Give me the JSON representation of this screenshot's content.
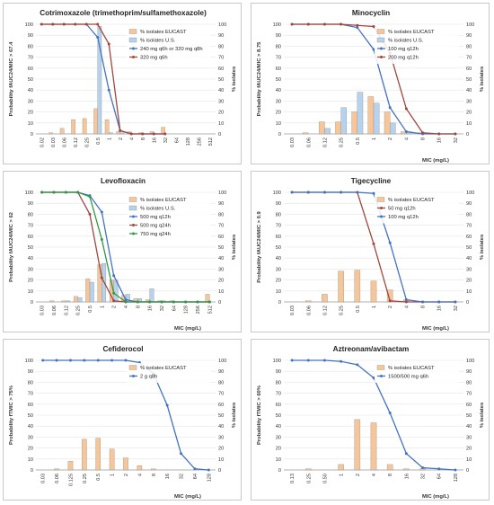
{
  "chart_data": [
    {
      "type": "bar",
      "title": "Cotrimoxazole (trimethoprim/sulfamethoxazole)",
      "ylabel": "Probability fAUC24/MIC > 67.4",
      "y2label": "% isolates",
      "xlabel": "",
      "ylim": [
        0,
        100
      ],
      "y2lim": [
        0,
        100
      ],
      "yticks": [
        0,
        10,
        20,
        30,
        40,
        50,
        60,
        70,
        80,
        90,
        100
      ],
      "categories": [
        "0.02",
        "0.03",
        "0.06",
        "0.12",
        "0.25",
        "0.5",
        "1",
        "2",
        "4",
        "8",
        "16",
        "32",
        "64",
        "128",
        "256",
        "512"
      ],
      "bar_series": [
        {
          "name": "% isolates EUCAST",
          "color": "#f7c698",
          "values": [
            0,
            1,
            5,
            13,
            14,
            23,
            13,
            2,
            2,
            1,
            2,
            6,
            0,
            0,
            0,
            0
          ]
        },
        {
          "name": "% isolates U.S.",
          "color": "#b7d2ec",
          "values": [
            0,
            0,
            0,
            0,
            0,
            98,
            1,
            1,
            0,
            0,
            0,
            0,
            0,
            0,
            0,
            0
          ]
        }
      ],
      "line_series": [
        {
          "name": "240 mg q6h or 320 mg q8h",
          "color": "#4472c4",
          "values": [
            100,
            100,
            100,
            100,
            100,
            88,
            40,
            3,
            0,
            0,
            0,
            0,
            null,
            null,
            null,
            null
          ]
        },
        {
          "name": "320 mg q6h",
          "color": "#a0473d",
          "values": [
            100,
            100,
            100,
            100,
            100,
            100,
            82,
            3,
            0,
            0,
            0,
            0,
            null,
            null,
            null,
            null
          ]
        }
      ]
    },
    {
      "type": "bar",
      "title": "Minocyclin",
      "ylabel": "Probability fAUC24/MIC > 8.75",
      "y2label": "% isolates",
      "xlabel": "MIC (mg/L)",
      "ylim": [
        0,
        100
      ],
      "y2lim": [
        0,
        100
      ],
      "yticks": [
        0,
        10,
        20,
        30,
        40,
        50,
        60,
        70,
        80,
        90,
        100
      ],
      "categories": [
        "0.03",
        "0.06",
        "0.12",
        "0.25",
        "0.5",
        "1",
        "2",
        "4",
        "8",
        "16",
        "32"
      ],
      "bar_series": [
        {
          "name": "% isolates EUCAST",
          "color": "#f7c698",
          "values": [
            0,
            1,
            11,
            11,
            20,
            34,
            20,
            2,
            1,
            0,
            0
          ]
        },
        {
          "name": "% isolates U.S.",
          "color": "#b7d2ec",
          "values": [
            0,
            0,
            5,
            24,
            38,
            28,
            10,
            2,
            1,
            0,
            0
          ]
        }
      ],
      "line_series": [
        {
          "name": "100 mg q12h",
          "color": "#4472c4",
          "values": [
            100,
            100,
            100,
            100,
            97,
            77,
            24,
            2,
            0,
            0,
            0
          ]
        },
        {
          "name": "200 mg q12h",
          "color": "#a0473d",
          "values": [
            100,
            100,
            100,
            100,
            99,
            98,
            74,
            23,
            1,
            0,
            0
          ]
        }
      ]
    },
    {
      "type": "bar",
      "title": "Levofloxacin",
      "ylabel": "Probability fAUC24/MIC > 62",
      "y2label": "% isolates",
      "xlabel": "MIC (mg/L)",
      "ylim": [
        0,
        100
      ],
      "y2lim": [
        0,
        100
      ],
      "yticks": [
        0,
        10,
        20,
        30,
        40,
        50,
        60,
        70,
        80,
        90,
        100
      ],
      "categories": [
        "0.03",
        "0.06",
        "0.12",
        "0.25",
        "0.5",
        "1",
        "2",
        "4",
        "8",
        "16",
        "32",
        "64",
        "128",
        "256",
        "512"
      ],
      "bar_series": [
        {
          "name": "% isolates EUCAST",
          "color": "#f7c698",
          "values": [
            0,
            1,
            1,
            5,
            21,
            34,
            20,
            6,
            3,
            2,
            1,
            1,
            0,
            0,
            7
          ]
        },
        {
          "name": "% isolates U.S.",
          "color": "#b7d2ec",
          "values": [
            0,
            0,
            1,
            4,
            18,
            35,
            20,
            7,
            3,
            12,
            1,
            0,
            0,
            0,
            0
          ]
        }
      ],
      "line_series": [
        {
          "name": "500 mg q12h",
          "color": "#4472c4",
          "values": [
            100,
            100,
            100,
            100,
            97,
            82,
            24,
            2,
            0,
            0,
            0,
            0,
            0,
            0,
            0
          ]
        },
        {
          "name": "500 mg q24h",
          "color": "#a0473d",
          "values": [
            100,
            100,
            100,
            100,
            80,
            22,
            1,
            0,
            0,
            0,
            0,
            0,
            0,
            0,
            0
          ]
        },
        {
          "name": "750 mg q24h",
          "color": "#2e9a47",
          "values": [
            100,
            100,
            100,
            100,
            96,
            57,
            8,
            0,
            0,
            0,
            0,
            0,
            0,
            0,
            0
          ]
        }
      ]
    },
    {
      "type": "bar",
      "title": "Tigecycline",
      "ylabel": "Probability fAUC24/MIC > 0.9",
      "y2label": "% isolates",
      "xlabel": "MIC (mg/L)",
      "ylim": [
        0,
        100
      ],
      "y2lim": [
        0,
        100
      ],
      "yticks": [
        0,
        10,
        20,
        30,
        40,
        50,
        60,
        70,
        80,
        90,
        100
      ],
      "categories": [
        "0.03",
        "0.06",
        "0.12",
        "0.25",
        "0.5",
        "1",
        "2",
        "4",
        "8",
        "16",
        "32"
      ],
      "bar_series": [
        {
          "name": "% isolates EUCAST",
          "color": "#f7c698",
          "values": [
            0,
            1,
            7,
            28,
            29,
            19,
            11,
            2,
            0,
            0,
            0
          ]
        }
      ],
      "line_series": [
        {
          "name": "50 mg q12h",
          "color": "#a0473d",
          "values": [
            100,
            100,
            100,
            100,
            100,
            53,
            1,
            0,
            0,
            0,
            0
          ]
        },
        {
          "name": "100 mg q12h",
          "color": "#4472c4",
          "values": [
            100,
            100,
            100,
            100,
            100,
            99,
            54,
            2,
            0,
            0,
            0
          ]
        }
      ]
    },
    {
      "type": "bar",
      "title": "Cefiderocol",
      "ylabel": "Probability fTMIC > 75%",
      "y2label": "% isolates",
      "xlabel": "MIC (mg/L)",
      "ylim": [
        0,
        100
      ],
      "y2lim": [
        0,
        100
      ],
      "yticks": [
        0,
        10,
        20,
        30,
        40,
        50,
        60,
        70,
        80,
        90,
        100
      ],
      "categories": [
        "0.03",
        "0.06",
        "0.125",
        "0.25",
        "0.5",
        "1",
        "2",
        "4",
        "8",
        "16",
        "32",
        "64",
        "128"
      ],
      "bar_series": [
        {
          "name": "% isolates EUCAST",
          "color": "#f7c698",
          "values": [
            0,
            1,
            8,
            28,
            29,
            19,
            11,
            4,
            1,
            0,
            0,
            0,
            0
          ]
        }
      ],
      "line_series": [
        {
          "name": "2 g q8h",
          "color": "#4472c4",
          "values": [
            100,
            100,
            100,
            100,
            100,
            100,
            100,
            98,
            88,
            59,
            15,
            1,
            0
          ]
        }
      ]
    },
    {
      "type": "bar",
      "title": "Aztreonam/avibactam",
      "ylabel": "Probability fTMIC > 60%",
      "y2label": "% isolates",
      "xlabel": "MIC (mg/L)",
      "ylim": [
        0,
        100
      ],
      "y2lim": [
        0,
        100
      ],
      "yticks": [
        0,
        10,
        20,
        30,
        40,
        50,
        60,
        70,
        80,
        90,
        100
      ],
      "categories": [
        "0.13",
        "0.25",
        "0.50",
        "1",
        "2",
        "4",
        "8",
        "16",
        "32",
        "64",
        "128"
      ],
      "bar_series": [
        {
          "name": "% isolates EUCAST",
          "color": "#f7c698",
          "values": [
            0,
            1,
            0,
            5,
            46,
            43,
            5,
            1,
            1,
            0,
            0
          ]
        }
      ],
      "line_series": [
        {
          "name": "1500/500 mg q6h",
          "color": "#4472c4",
          "values": [
            100,
            100,
            100,
            99,
            96,
            84,
            52,
            15,
            2,
            1,
            0
          ]
        }
      ]
    }
  ]
}
